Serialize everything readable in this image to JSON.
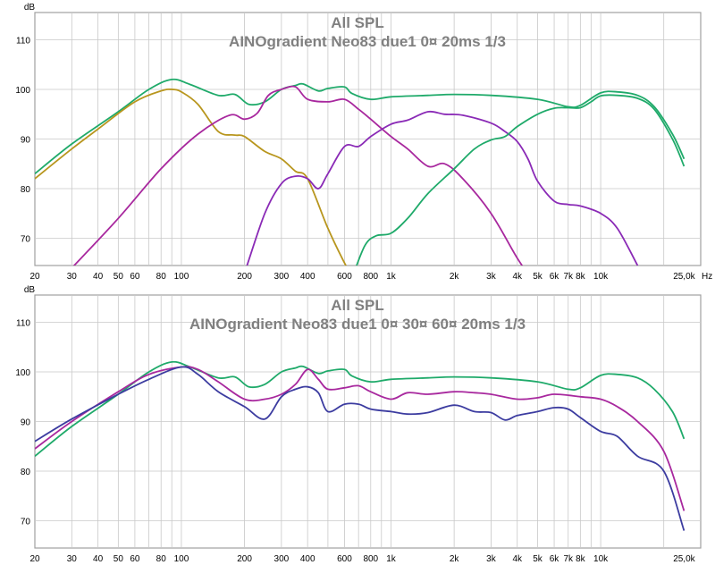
{
  "colors": {
    "grid": "#c8c8c8",
    "frame": "#a0a0a0",
    "title": "#808080",
    "axis_text": "#000000",
    "green": "#1faa6a",
    "gold": "#b8961e",
    "magenta": "#a8289e",
    "purple": "#8a2ab6",
    "blue": "#3c3ca0"
  },
  "chart_data": [
    {
      "type": "line",
      "title": "All SPL",
      "subtitle": "AINOgradient Neo83 due1 0¤ 20ms 1/3",
      "ylabel": "dB",
      "xlabel": "Hz",
      "xscale": "log",
      "xlim": [
        20,
        30000
      ],
      "ylim": [
        64.5,
        115.5
      ],
      "grid": true,
      "x_tick_labels": [
        {
          "v": 20,
          "t": "20"
        },
        {
          "v": 30,
          "t": "30"
        },
        {
          "v": 40,
          "t": "40"
        },
        {
          "v": 50,
          "t": "50"
        },
        {
          "v": 60,
          "t": "60"
        },
        {
          "v": 80,
          "t": "80"
        },
        {
          "v": 100,
          "t": "100"
        },
        {
          "v": 200,
          "t": "200"
        },
        {
          "v": 300,
          "t": "300"
        },
        {
          "v": 400,
          "t": "400"
        },
        {
          "v": 600,
          "t": "600"
        },
        {
          "v": 800,
          "t": "800"
        },
        {
          "v": 1000,
          "t": "1k"
        },
        {
          "v": 2000,
          "t": "2k"
        },
        {
          "v": 3000,
          "t": "3k"
        },
        {
          "v": 4000,
          "t": "4k"
        },
        {
          "v": 5000,
          "t": "5k"
        },
        {
          "v": 6000,
          "t": "6k"
        },
        {
          "v": 7000,
          "t": "7k"
        },
        {
          "v": 8000,
          "t": "8k"
        },
        {
          "v": 10000,
          "t": "10k"
        },
        {
          "v": 25000,
          "t": "25,0k"
        }
      ],
      "y_ticks": [
        70,
        80,
        90,
        100,
        110
      ],
      "series": [
        {
          "color": "#1faa6a",
          "x": [
            20,
            30,
            50,
            70,
            90,
            110,
            150,
            180,
            210,
            250,
            300,
            350,
            380,
            450,
            500,
            600,
            650,
            800,
            1000,
            1500,
            2000,
            3000,
            5000,
            7000,
            8000,
            10000,
            12000,
            15000,
            18000,
            22000,
            25000
          ],
          "y": [
            83,
            89,
            95.5,
            100,
            102,
            101,
            98.8,
            99,
            97,
            97.5,
            100,
            100.8,
            101.1,
            99.7,
            100.2,
            100.5,
            99.2,
            98,
            98.5,
            98.8,
            99,
            98.8,
            98,
            96.5,
            96.8,
            99.3,
            99.5,
            98.8,
            96.5,
            91,
            86
          ]
        },
        {
          "color": "#b8961e",
          "x": [
            20,
            30,
            40,
            60,
            80,
            90,
            100,
            120,
            150,
            180,
            200,
            250,
            300,
            350,
            400,
            500,
            600,
            700
          ],
          "y": [
            82,
            88,
            92,
            97.5,
            99.7,
            100,
            99.5,
            97,
            91.5,
            90.8,
            90.5,
            87.5,
            86,
            83.5,
            82,
            72,
            65,
            60
          ]
        },
        {
          "color": "#a8289e",
          "x": [
            30,
            50,
            80,
            120,
            170,
            200,
            230,
            260,
            300,
            350,
            400,
            500,
            600,
            700,
            800,
            1000,
            1200,
            1500,
            1800,
            2200,
            3000,
            4000,
            5000
          ],
          "y": [
            64,
            74,
            84,
            91,
            94.8,
            94,
            95.2,
            98.8,
            100,
            100.5,
            98,
            97.5,
            98,
            96,
            94,
            90.5,
            88,
            84.5,
            85,
            82,
            75,
            66,
            60
          ]
        },
        {
          "color": "#8a2ab6",
          "x": [
            180,
            200,
            250,
            300,
            350,
            400,
            450,
            500,
            600,
            700,
            800,
            1000,
            1200,
            1500,
            1800,
            2200,
            3000,
            3500,
            4000,
            4500,
            5000,
            6000,
            7000,
            8000,
            10000,
            12000,
            15000
          ],
          "y": [
            58,
            63,
            75,
            81,
            82.5,
            82,
            80,
            83,
            88.5,
            88.5,
            90.5,
            93,
            93.8,
            95.5,
            95,
            94.8,
            93.2,
            91.5,
            89.5,
            86,
            81.5,
            77.5,
            76.8,
            76.5,
            75,
            72,
            64.5
          ]
        },
        {
          "color": "#1faa6a",
          "x": [
            550,
            650,
            750,
            850,
            1000,
            1200,
            1500,
            2000,
            2500,
            3000,
            3500,
            4000,
            5000,
            6000,
            7000,
            8000,
            9000,
            10000,
            12000,
            15000,
            18000,
            22000,
            25000
          ],
          "y": [
            55,
            62,
            68.5,
            70.5,
            71,
            74,
            79,
            84,
            88,
            89.8,
            90.5,
            92.5,
            95,
            96.2,
            96.3,
            96.3,
            97.5,
            98.7,
            98.8,
            98.2,
            96,
            90,
            84.5
          ]
        }
      ]
    },
    {
      "type": "line",
      "title": "All SPL",
      "subtitle": "AINOgradient Neo83 due1 0¤ 30¤ 60¤ 20ms 1/3",
      "ylabel": "dB",
      "xlabel": "Hz",
      "xscale": "log",
      "xlim": [
        20,
        30000
      ],
      "ylim": [
        64.5,
        115.5
      ],
      "grid": true,
      "x_tick_labels": [
        {
          "v": 20,
          "t": "20"
        },
        {
          "v": 30,
          "t": "30"
        },
        {
          "v": 40,
          "t": "40"
        },
        {
          "v": 50,
          "t": "50"
        },
        {
          "v": 60,
          "t": "60"
        },
        {
          "v": 80,
          "t": "80"
        },
        {
          "v": 100,
          "t": "100"
        },
        {
          "v": 200,
          "t": "200"
        },
        {
          "v": 300,
          "t": "300"
        },
        {
          "v": 400,
          "t": "400"
        },
        {
          "v": 600,
          "t": "600"
        },
        {
          "v": 800,
          "t": "800"
        },
        {
          "v": 1000,
          "t": "1k"
        },
        {
          "v": 2000,
          "t": "2k"
        },
        {
          "v": 3000,
          "t": "3k"
        },
        {
          "v": 4000,
          "t": "4k"
        },
        {
          "v": 5000,
          "t": "5k"
        },
        {
          "v": 6000,
          "t": "6k"
        },
        {
          "v": 7000,
          "t": "7k"
        },
        {
          "v": 8000,
          "t": "8k"
        },
        {
          "v": 10000,
          "t": "10k"
        },
        {
          "v": 25000,
          "t": "25,0k"
        }
      ],
      "y_ticks": [
        70,
        80,
        90,
        100,
        110
      ],
      "series": [
        {
          "color": "#1faa6a",
          "x": [
            20,
            30,
            50,
            70,
            90,
            110,
            150,
            180,
            210,
            250,
            300,
            350,
            380,
            450,
            500,
            600,
            650,
            800,
            1000,
            1500,
            2000,
            3000,
            5000,
            7000,
            8000,
            10000,
            12000,
            15000,
            18000,
            22000,
            25000
          ],
          "y": [
            83,
            89,
            95.5,
            100,
            102,
            101,
            98.8,
            99,
            97,
            97.5,
            100,
            100.8,
            101.1,
            99.7,
            100.2,
            100.5,
            99.2,
            98,
            98.5,
            98.8,
            99,
            98.8,
            98,
            96.5,
            96.8,
            99.3,
            99.5,
            98.8,
            96.5,
            92,
            86.5
          ]
        },
        {
          "color": "#a8289e",
          "x": [
            20,
            30,
            50,
            70,
            100,
            120,
            150,
            200,
            250,
            300,
            350,
            400,
            450,
            500,
            600,
            700,
            800,
            1000,
            1200,
            1500,
            2000,
            2500,
            3000,
            4000,
            5000,
            6000,
            8000,
            10000,
            12000,
            15000,
            20000,
            25000
          ],
          "y": [
            84.5,
            90,
            96,
            99.5,
            101,
            100.5,
            98,
            94.5,
            94.5,
            95.5,
            97.5,
            100.5,
            98.5,
            96.5,
            96.8,
            97.2,
            96,
            94.5,
            95.8,
            95.5,
            96,
            95.8,
            95.5,
            94.5,
            94.8,
            95.5,
            95,
            94.5,
            93,
            90,
            84,
            72
          ]
        },
        {
          "color": "#3c3ca0",
          "x": [
            20,
            30,
            50,
            70,
            100,
            120,
            150,
            200,
            250,
            300,
            350,
            400,
            450,
            500,
            600,
            700,
            800,
            1000,
            1200,
            1500,
            2000,
            2500,
            3000,
            3500,
            4000,
            5000,
            6000,
            7000,
            8000,
            10000,
            12000,
            15000,
            20000,
            25000
          ],
          "y": [
            86,
            90.5,
            95.5,
            98.5,
            101,
            99.5,
            96,
            93,
            90.5,
            95,
            96.5,
            97,
            95.8,
            92,
            93.5,
            93.5,
            92.5,
            92,
            91.5,
            91.8,
            93.3,
            92,
            91.8,
            90.3,
            91.2,
            92,
            92.8,
            92.5,
            90.8,
            88,
            87,
            83,
            80,
            68
          ]
        }
      ]
    }
  ]
}
